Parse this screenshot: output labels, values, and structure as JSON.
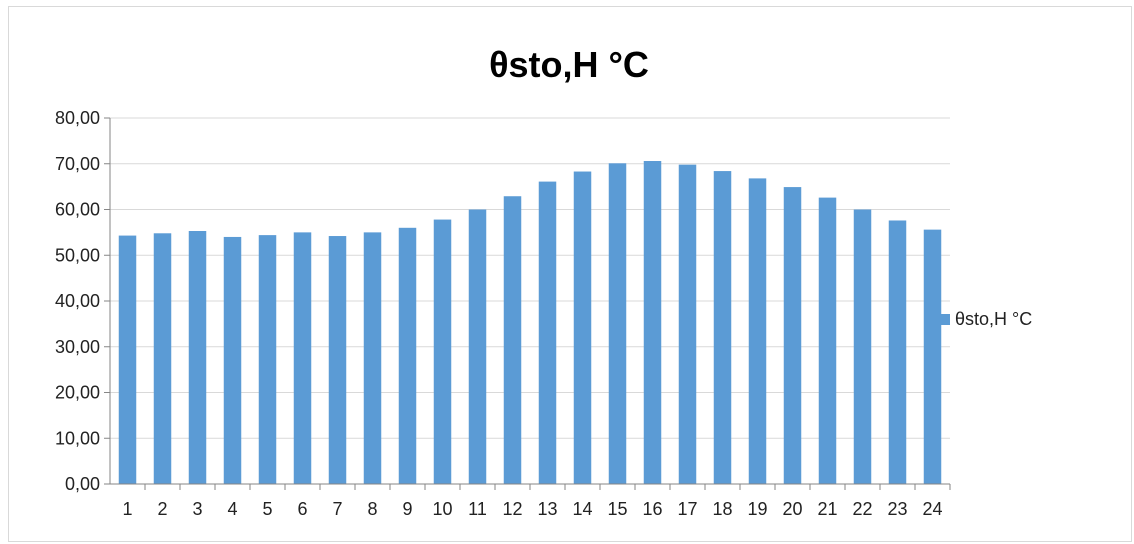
{
  "chart_data": {
    "type": "bar",
    "title": "θsto,H °C",
    "categories": [
      "1",
      "2",
      "3",
      "4",
      "5",
      "6",
      "7",
      "8",
      "9",
      "10",
      "11",
      "12",
      "13",
      "14",
      "15",
      "16",
      "17",
      "18",
      "19",
      "20",
      "21",
      "22",
      "23",
      "24"
    ],
    "series": [
      {
        "name": "θsto,H °C",
        "color": "#5B9BD5",
        "values": [
          54.3,
          54.8,
          55.3,
          54.0,
          54.4,
          55.0,
          54.2,
          55.0,
          56.0,
          57.8,
          60.0,
          62.9,
          66.1,
          68.3,
          70.1,
          70.6,
          69.8,
          68.4,
          66.8,
          64.9,
          62.6,
          60.0,
          57.6,
          55.6
        ]
      }
    ],
    "yticks": [
      "0,00",
      "10,00",
      "20,00",
      "30,00",
      "40,00",
      "50,00",
      "60,00",
      "70,00",
      "80,00"
    ],
    "ylim": [
      0,
      80
    ],
    "grid": true,
    "legend_position": "right"
  }
}
